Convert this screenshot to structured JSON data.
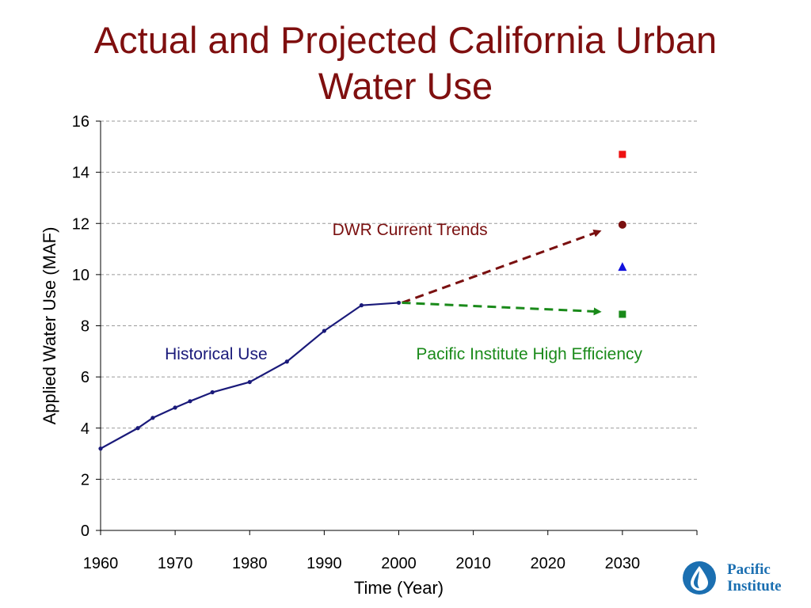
{
  "slide": {
    "title_line1": "Actual and Projected California Urban",
    "title_line2": "Water Use"
  },
  "chart_data": {
    "type": "line",
    "xlabel": "Time (Year)",
    "ylabel": "Applied Water Use (MAF)",
    "xlim": [
      1960,
      2040
    ],
    "ylim": [
      0,
      16
    ],
    "xticks": [
      1960,
      1970,
      1980,
      1990,
      2000,
      2010,
      2020,
      2030
    ],
    "yticks": [
      0,
      2,
      4,
      6,
      8,
      10,
      12,
      14,
      16
    ],
    "grid": "horizontal-dashed",
    "series": [
      {
        "name": "Historical Use",
        "color": "#1a1a7a",
        "style": "solid-line-with-dots",
        "x": [
          1960,
          1965,
          1967,
          1970,
          1972,
          1975,
          1980,
          1985,
          1990,
          1995,
          2000
        ],
        "y": [
          3.2,
          4.0,
          4.4,
          4.8,
          5.05,
          5.4,
          5.8,
          6.6,
          7.8,
          8.8,
          8.9
        ]
      }
    ],
    "arrows": [
      {
        "name": "DWR Current Trends",
        "color": "#7a1010",
        "from": [
          2000,
          8.9
        ],
        "to": [
          2027,
          11.7
        ]
      },
      {
        "name": "Pacific Institute High Efficiency",
        "color": "#1a8a1a",
        "from": [
          2000,
          8.9
        ],
        "to": [
          2027,
          8.55
        ]
      }
    ],
    "points_2030": [
      {
        "x": 2030,
        "y": 14.7,
        "shape": "square",
        "color": "#ee1111"
      },
      {
        "x": 2030,
        "y": 11.95,
        "shape": "circle",
        "color": "#7a1010"
      },
      {
        "x": 2030,
        "y": 10.3,
        "shape": "triangle",
        "color": "#1111dd"
      },
      {
        "x": 2030,
        "y": 8.45,
        "shape": "square",
        "color": "#1a8a1a"
      }
    ],
    "annotations": [
      {
        "text": "DWR Current Trends",
        "color": "#7a1010",
        "x": 2001.5,
        "y": 11.55,
        "anchor": "middle"
      },
      {
        "text": "Historical Use",
        "color": "#1a1a7a",
        "x": 1975.5,
        "y": 6.68,
        "anchor": "middle"
      },
      {
        "text": "Pacific Institute High Efficiency",
        "color": "#1a8a1a",
        "x": 2017.5,
        "y": 6.68,
        "anchor": "middle"
      }
    ]
  },
  "logo": {
    "line1": "Pacific",
    "line2": "Institute",
    "icon": "water-drop-icon",
    "color": "#1b6fb1"
  }
}
